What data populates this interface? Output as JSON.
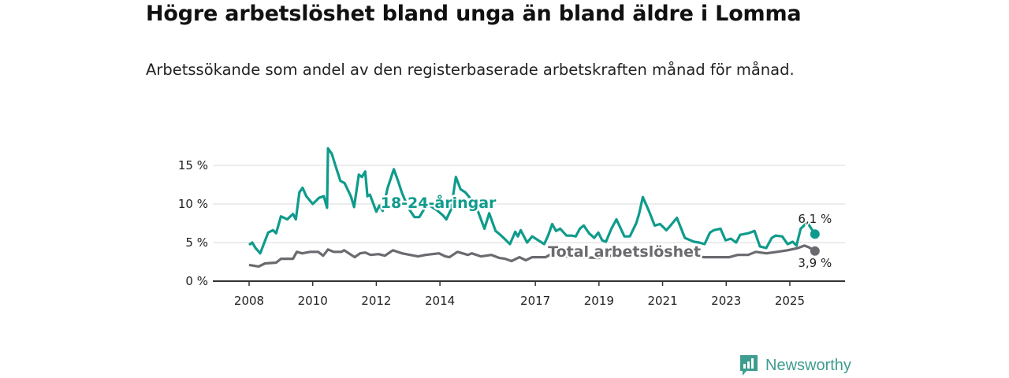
{
  "title": "Högre arbetslöshet bland unga än bland äldre i Lomma",
  "subtitle": "Arbetssökande som andel av den registerbaserade arbetskraften månad för månad.",
  "logo": {
    "text": "Newsworthy"
  },
  "chart_data": {
    "type": "line",
    "title": "Högre arbetslöshet bland unga än bland äldre i Lomma",
    "ylabel": "",
    "xlabel": "",
    "ylim": [
      0,
      17
    ],
    "xlim": [
      2007.6,
      2026.4
    ],
    "y_ticks": [
      {
        "v": 0,
        "label": "0 %"
      },
      {
        "v": 5,
        "label": "5 %"
      },
      {
        "v": 10,
        "label": "10 %"
      },
      {
        "v": 15,
        "label": "15 %"
      }
    ],
    "x_ticks": [
      {
        "v": 2008,
        "label": "2008"
      },
      {
        "v": 2010,
        "label": "2010"
      },
      {
        "v": 2012,
        "label": "2012"
      },
      {
        "v": 2014,
        "label": "2014"
      },
      {
        "v": 2017,
        "label": "2017"
      },
      {
        "v": 2019,
        "label": "2019"
      },
      {
        "v": 2021,
        "label": "2021"
      },
      {
        "v": 2023,
        "label": "2023"
      },
      {
        "v": 2025,
        "label": "2025"
      }
    ],
    "grid": true,
    "series": [
      {
        "name": "18-24-åringar",
        "color": "#0f9b8c",
        "end_label": "6,1 %",
        "label_at": [
          2013.95,
          10.2
        ],
        "points": [
          [
            2008.0,
            4.7
          ],
          [
            2008.1,
            5.0
          ],
          [
            2008.2,
            4.3
          ],
          [
            2008.35,
            3.6
          ],
          [
            2008.6,
            6.3
          ],
          [
            2008.75,
            6.6
          ],
          [
            2008.85,
            6.2
          ],
          [
            2009.0,
            8.4
          ],
          [
            2009.2,
            8.0
          ],
          [
            2009.38,
            8.7
          ],
          [
            2009.47,
            8.0
          ],
          [
            2009.58,
            11.5
          ],
          [
            2009.68,
            12.1
          ],
          [
            2009.8,
            11.0
          ],
          [
            2010.0,
            10.0
          ],
          [
            2010.2,
            10.8
          ],
          [
            2010.35,
            11.0
          ],
          [
            2010.45,
            9.5
          ],
          [
            2010.48,
            17.2
          ],
          [
            2010.6,
            16.5
          ],
          [
            2010.75,
            14.5
          ],
          [
            2010.87,
            13.0
          ],
          [
            2011.0,
            12.7
          ],
          [
            2011.2,
            11.0
          ],
          [
            2011.3,
            9.6
          ],
          [
            2011.45,
            13.8
          ],
          [
            2011.55,
            13.5
          ],
          [
            2011.65,
            14.2
          ],
          [
            2011.72,
            11.0
          ],
          [
            2011.8,
            11.2
          ],
          [
            2012.0,
            9.0
          ],
          [
            2012.1,
            9.8
          ],
          [
            2012.2,
            9.1
          ],
          [
            2012.35,
            12.0
          ],
          [
            2012.55,
            14.5
          ],
          [
            2012.7,
            12.8
          ],
          [
            2012.8,
            11.5
          ],
          [
            2013.0,
            9.5
          ],
          [
            2013.2,
            8.3
          ],
          [
            2013.35,
            8.3
          ],
          [
            2013.6,
            10.0
          ],
          [
            2013.9,
            9.2
          ],
          [
            2014.1,
            8.5
          ],
          [
            2014.2,
            8.0
          ],
          [
            2014.35,
            9.3
          ],
          [
            2014.5,
            13.5
          ],
          [
            2014.65,
            11.9
          ],
          [
            2014.8,
            11.5
          ],
          [
            2015.0,
            10.5
          ],
          [
            2015.2,
            9.0
          ],
          [
            2015.4,
            6.8
          ],
          [
            2015.55,
            8.8
          ],
          [
            2015.75,
            6.5
          ],
          [
            2015.87,
            6.1
          ],
          [
            2016.0,
            5.6
          ],
          [
            2016.2,
            4.8
          ],
          [
            2016.37,
            6.4
          ],
          [
            2016.45,
            5.8
          ],
          [
            2016.54,
            6.6
          ],
          [
            2016.74,
            5.0
          ],
          [
            2016.9,
            5.8
          ],
          [
            2017.28,
            4.8
          ],
          [
            2017.4,
            5.9
          ],
          [
            2017.53,
            7.4
          ],
          [
            2017.65,
            6.5
          ],
          [
            2017.78,
            6.8
          ],
          [
            2017.98,
            5.9
          ],
          [
            2018.15,
            5.9
          ],
          [
            2018.27,
            5.8
          ],
          [
            2018.4,
            6.8
          ],
          [
            2018.52,
            7.2
          ],
          [
            2018.69,
            6.2
          ],
          [
            2018.85,
            5.6
          ],
          [
            2018.98,
            6.3
          ],
          [
            2019.1,
            5.3
          ],
          [
            2019.22,
            5.1
          ],
          [
            2019.39,
            6.8
          ],
          [
            2019.55,
            8.0
          ],
          [
            2019.8,
            5.8
          ],
          [
            2019.97,
            5.8
          ],
          [
            2020.17,
            7.5
          ],
          [
            2020.26,
            8.7
          ],
          [
            2020.38,
            10.9
          ],
          [
            2020.59,
            8.9
          ],
          [
            2020.75,
            7.2
          ],
          [
            2020.92,
            7.4
          ],
          [
            2021.12,
            6.6
          ],
          [
            2021.25,
            7.2
          ],
          [
            2021.45,
            8.2
          ],
          [
            2021.7,
            5.6
          ],
          [
            2021.99,
            5.1
          ],
          [
            2022.15,
            5.0
          ],
          [
            2022.32,
            4.8
          ],
          [
            2022.49,
            6.3
          ],
          [
            2022.61,
            6.6
          ],
          [
            2022.82,
            6.8
          ],
          [
            2022.98,
            5.3
          ],
          [
            2023.15,
            5.5
          ],
          [
            2023.31,
            5.0
          ],
          [
            2023.44,
            6.0
          ],
          [
            2023.69,
            6.2
          ],
          [
            2023.89,
            6.5
          ],
          [
            2024.06,
            4.5
          ],
          [
            2024.26,
            4.3
          ],
          [
            2024.43,
            5.6
          ],
          [
            2024.55,
            5.9
          ],
          [
            2024.76,
            5.8
          ],
          [
            2024.93,
            4.8
          ],
          [
            2025.09,
            5.1
          ],
          [
            2025.21,
            4.6
          ],
          [
            2025.34,
            6.8
          ],
          [
            2025.55,
            7.6
          ],
          [
            2025.79,
            6.1
          ]
        ]
      },
      {
        "name": "Total arbetslöshet",
        "color": "#6b6a6f",
        "end_label": "3,9 %",
        "label_at": [
          2019.8,
          3.9
        ],
        "points": [
          [
            2008.0,
            2.1
          ],
          [
            2008.3,
            1.9
          ],
          [
            2008.5,
            2.3
          ],
          [
            2008.85,
            2.4
          ],
          [
            2009.0,
            2.9
          ],
          [
            2009.25,
            2.9
          ],
          [
            2009.38,
            2.9
          ],
          [
            2009.5,
            3.8
          ],
          [
            2009.67,
            3.6
          ],
          [
            2009.92,
            3.8
          ],
          [
            2010.17,
            3.8
          ],
          [
            2010.33,
            3.3
          ],
          [
            2010.48,
            4.1
          ],
          [
            2010.66,
            3.8
          ],
          [
            2010.9,
            3.8
          ],
          [
            2010.99,
            4.0
          ],
          [
            2011.32,
            3.1
          ],
          [
            2011.49,
            3.6
          ],
          [
            2011.65,
            3.7
          ],
          [
            2011.82,
            3.4
          ],
          [
            2012.07,
            3.5
          ],
          [
            2012.27,
            3.3
          ],
          [
            2012.52,
            4.0
          ],
          [
            2012.81,
            3.6
          ],
          [
            2013.06,
            3.4
          ],
          [
            2013.31,
            3.2
          ],
          [
            2013.55,
            3.4
          ],
          [
            2013.97,
            3.6
          ],
          [
            2014.17,
            3.2
          ],
          [
            2014.3,
            3.1
          ],
          [
            2014.55,
            3.8
          ],
          [
            2014.88,
            3.4
          ],
          [
            2015.0,
            3.6
          ],
          [
            2015.29,
            3.2
          ],
          [
            2015.62,
            3.4
          ],
          [
            2015.87,
            3.0
          ],
          [
            2016.05,
            2.9
          ],
          [
            2016.25,
            2.6
          ],
          [
            2016.5,
            3.1
          ],
          [
            2016.7,
            2.7
          ],
          [
            2016.9,
            3.1
          ],
          [
            2017.32,
            3.1
          ],
          [
            2017.45,
            3.4
          ],
          [
            2018.0,
            3.2
          ],
          [
            2019.0,
            3.0
          ],
          [
            2020.3,
            4.0
          ],
          [
            2021.0,
            3.6
          ],
          [
            2022.0,
            3.2
          ],
          [
            2022.32,
            3.1
          ],
          [
            2023.1,
            3.1
          ],
          [
            2023.36,
            3.4
          ],
          [
            2023.69,
            3.4
          ],
          [
            2023.93,
            3.8
          ],
          [
            2024.26,
            3.6
          ],
          [
            2024.6,
            3.8
          ],
          [
            2024.93,
            4.0
          ],
          [
            2025.26,
            4.3
          ],
          [
            2025.46,
            4.6
          ],
          [
            2025.59,
            4.4
          ],
          [
            2025.79,
            3.9
          ]
        ]
      }
    ]
  }
}
